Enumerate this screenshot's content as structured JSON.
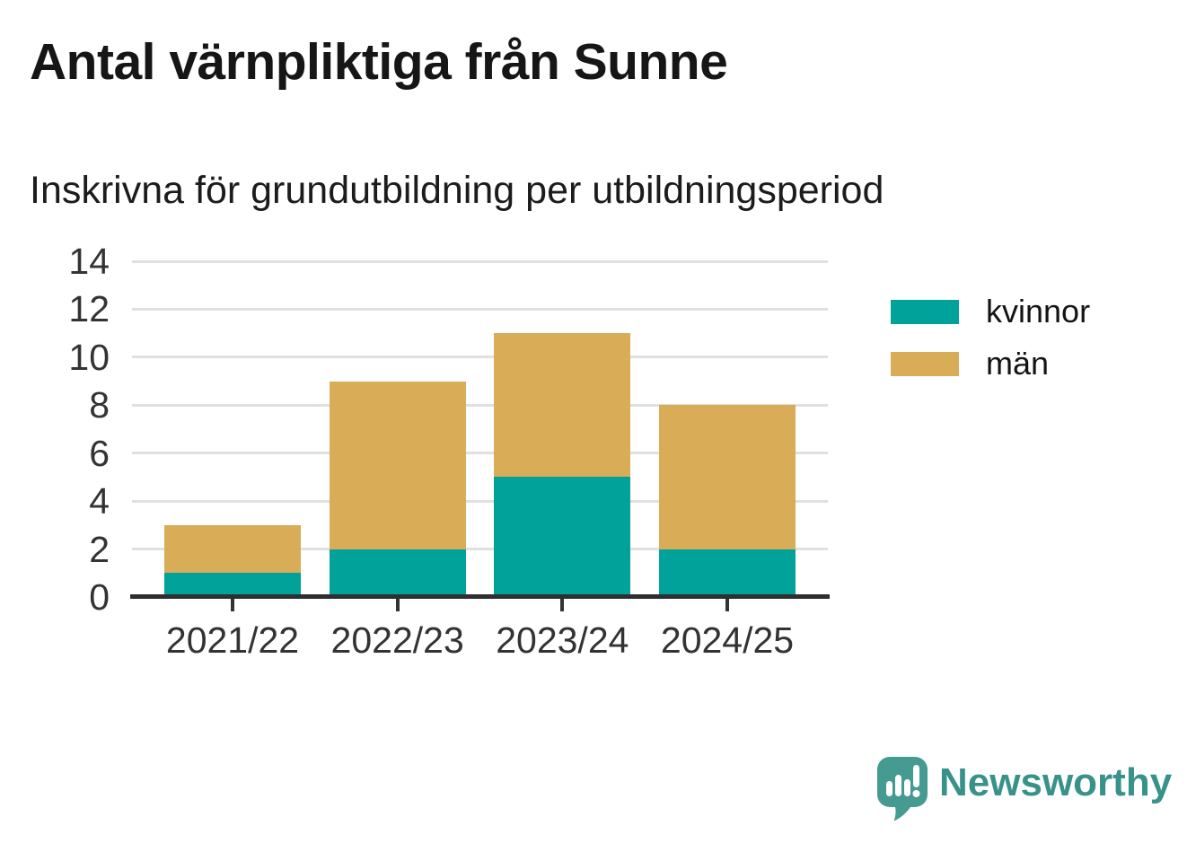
{
  "header": {
    "title": "Antal värnpliktiga från Sunne",
    "subtitle": "Inskrivna för grundutbildning per utbildningsperiod"
  },
  "chart_data": {
    "type": "bar",
    "stacked": true,
    "title": "Antal värnpliktiga från Sunne",
    "subtitle": "Inskrivna för grundutbildning per utbildningsperiod",
    "categories": [
      "2021/22",
      "2022/23",
      "2023/24",
      "2024/25"
    ],
    "series": [
      {
        "name": "kvinnor",
        "color": "#00a29a",
        "values": [
          1,
          2,
          5,
          2
        ]
      },
      {
        "name": "män",
        "color": "#d9ac58",
        "values": [
          2,
          7,
          6,
          6
        ]
      }
    ],
    "stack_totals": [
      3,
      9,
      11,
      8
    ],
    "xlabel": "",
    "ylabel": "",
    "ylim": [
      0,
      14
    ],
    "yticks": [
      0,
      2,
      4,
      6,
      8,
      10,
      12,
      14
    ],
    "grid": true,
    "gridline_color": "#e0e0e0",
    "axis_color": "#2e2e2e",
    "tick_label_color": "#333333",
    "legend_position": "right"
  },
  "branding": {
    "name": "Newsworthy",
    "color": "#38928a",
    "icon": "newsworthy-bubble-chart-icon",
    "icon_color": "#459a92"
  }
}
